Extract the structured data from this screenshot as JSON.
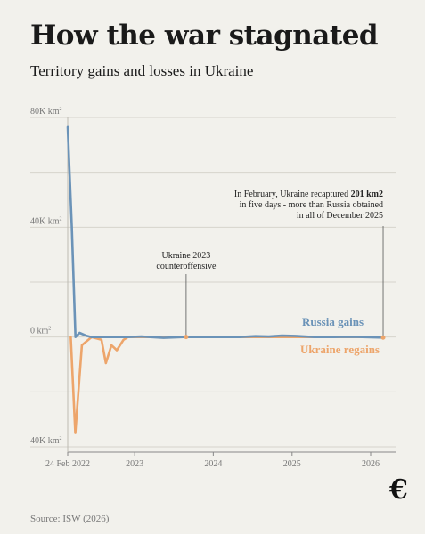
{
  "header": {
    "title": "How the war stagnated",
    "subtitle": "Territory gains and losses in Ukraine"
  },
  "source": "Source: ISW (2026)",
  "brand": {
    "logo_text": "€"
  },
  "chart_data": {
    "type": "line",
    "title": "How the war stagnated",
    "subtitle": "Territory gains and losses in Ukraine",
    "y_unit": "km²",
    "ylim": [
      -40000,
      80000
    ],
    "y_ticks": [
      {
        "value": 80000,
        "label": "80K km",
        "sup": "2"
      },
      {
        "value": 40000,
        "label": "40K km",
        "sup": "2"
      },
      {
        "value": 0,
        "label": "0 km",
        "sup": "2"
      },
      {
        "value": -40000,
        "label": "40K km",
        "sup": "2"
      }
    ],
    "xlim": [
      "2022-02-24",
      "2026-05-01"
    ],
    "x_ticks": [
      {
        "date": "2022-02-24",
        "label": "24 Feb 2022"
      },
      {
        "date": "2023-01-01",
        "label": "2023"
      },
      {
        "date": "2024-01-01",
        "label": "2024"
      },
      {
        "date": "2025-01-01",
        "label": "2025"
      },
      {
        "date": "2026-01-01",
        "label": "2026"
      }
    ],
    "grid": true,
    "legend_position": "right, beside the lines",
    "series": [
      {
        "name": "Russia gains",
        "color": "#6b93b8",
        "points": [
          [
            "2022-02-24",
            76500
          ],
          [
            "2022-03-15",
            40000
          ],
          [
            "2022-04-01",
            0
          ],
          [
            "2022-04-20",
            1500
          ],
          [
            "2022-05-20",
            500
          ],
          [
            "2022-06-15",
            0
          ],
          [
            "2022-08-15",
            0
          ],
          [
            "2022-10-15",
            0
          ],
          [
            "2022-12-01",
            0
          ],
          [
            "2023-02-01",
            200
          ],
          [
            "2023-03-15",
            0
          ],
          [
            "2023-05-15",
            -300
          ],
          [
            "2023-08-15",
            0
          ],
          [
            "2023-11-15",
            0
          ],
          [
            "2024-02-15",
            0
          ],
          [
            "2024-05-01",
            0
          ],
          [
            "2024-07-15",
            300
          ],
          [
            "2024-09-15",
            200
          ],
          [
            "2024-11-15",
            500
          ],
          [
            "2025-01-15",
            400
          ],
          [
            "2025-04-15",
            0
          ],
          [
            "2025-07-15",
            0
          ],
          [
            "2025-10-15",
            100
          ],
          [
            "2025-12-31",
            -100
          ],
          [
            "2026-02-28",
            -200
          ]
        ]
      },
      {
        "name": "Ukraine regains",
        "color": "#eda56b",
        "points": [
          [
            "2022-03-10",
            0
          ],
          [
            "2022-03-31",
            -35000
          ],
          [
            "2022-05-01",
            -3000
          ],
          [
            "2022-06-15",
            0
          ],
          [
            "2022-07-31",
            -1000
          ],
          [
            "2022-08-20",
            -9500
          ],
          [
            "2022-09-15",
            -3000
          ],
          [
            "2022-10-10",
            -4800
          ],
          [
            "2022-11-10",
            -1000
          ],
          [
            "2022-12-01",
            0
          ],
          [
            "2023-08-28",
            0
          ],
          [
            "2026-02-10",
            0
          ],
          [
            "2026-02-28",
            -201
          ]
        ]
      }
    ],
    "annotations": [
      {
        "date": "2023-08-28",
        "lines": [
          "Ukraine 2023",
          "counteroffensive"
        ]
      },
      {
        "date": "2026-02-28",
        "line1_prefix": "In February, Ukraine recaptured ",
        "line1_bold": "201 km2",
        "line2": "in five days - more than Russia obtained",
        "line3": "in all of December 2025"
      }
    ]
  }
}
